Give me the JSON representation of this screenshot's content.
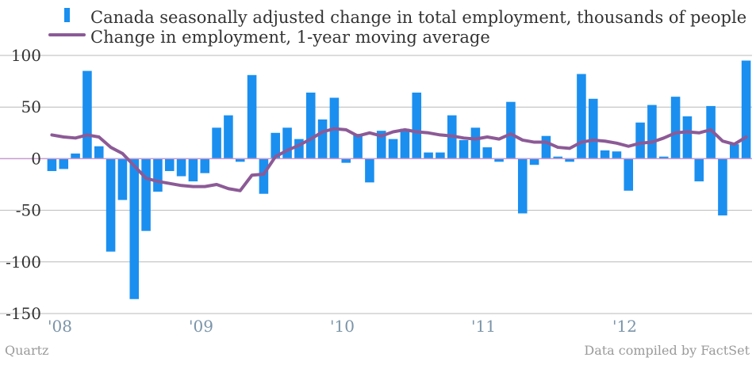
{
  "chart_data": {
    "type": "bar",
    "colors": {
      "bars": "#1a8ff0",
      "line": "#8c5a96",
      "grid": "#b8b8b8",
      "zero_line": "#c89ad0"
    },
    "legend": [
      {
        "name": "Canada seasonally adjusted change in total employment, thousands of people",
        "kind": "bar"
      },
      {
        "name": "Change in employment, 1-year moving average",
        "kind": "line"
      }
    ],
    "ylim": [
      -150,
      100
    ],
    "yticks": [
      100,
      50,
      0,
      -50,
      -100,
      -150
    ],
    "ytick_labels": [
      "100",
      "50",
      "0",
      "-50",
      "-100",
      "-150"
    ],
    "xtick_labels": [
      {
        "label": "'08",
        "month_index": 0
      },
      {
        "label": "'09",
        "month_index": 12
      },
      {
        "label": "'10",
        "month_index": 24
      },
      {
        "label": "'11",
        "month_index": 36
      },
      {
        "label": "'12",
        "month_index": 48
      }
    ],
    "grid": true,
    "legend_position": "top",
    "series": [
      {
        "name": "Canada seasonally adjusted change in total employment, thousands of people",
        "type": "bar",
        "values": [
          -12,
          -10,
          5,
          85,
          12,
          -90,
          -40,
          -136,
          -70,
          -32,
          -12,
          -17,
          -22,
          -14,
          30,
          42,
          -3,
          81,
          -34,
          25,
          30,
          19,
          64,
          38,
          59,
          -4,
          24,
          -23,
          27,
          19,
          29,
          64,
          6,
          6,
          42,
          18,
          30,
          11,
          -3,
          55,
          -53,
          -6,
          22,
          2,
          -3,
          82,
          58,
          8,
          7,
          -31,
          35,
          52,
          2,
          60,
          41,
          -22,
          51,
          -55,
          14,
          95
        ]
      },
      {
        "name": "Change in employment, 1-year moving average",
        "type": "line",
        "values": [
          23,
          21,
          20,
          23,
          21,
          11,
          5,
          -7,
          -19,
          -22,
          -24,
          -26,
          -27,
          -27,
          -25,
          -29,
          -31,
          -16,
          -15,
          2,
          8,
          13,
          19,
          26,
          29,
          28,
          22,
          25,
          22,
          26,
          28,
          26,
          25,
          23,
          22,
          20,
          19,
          21,
          19,
          24,
          18,
          16,
          16,
          11,
          10,
          16,
          18,
          17,
          15,
          12,
          15,
          16,
          20,
          25,
          26,
          25,
          28,
          17,
          14,
          21
        ]
      }
    ]
  },
  "footer": {
    "left": "Quartz",
    "right": "Data compiled by FactSet"
  }
}
